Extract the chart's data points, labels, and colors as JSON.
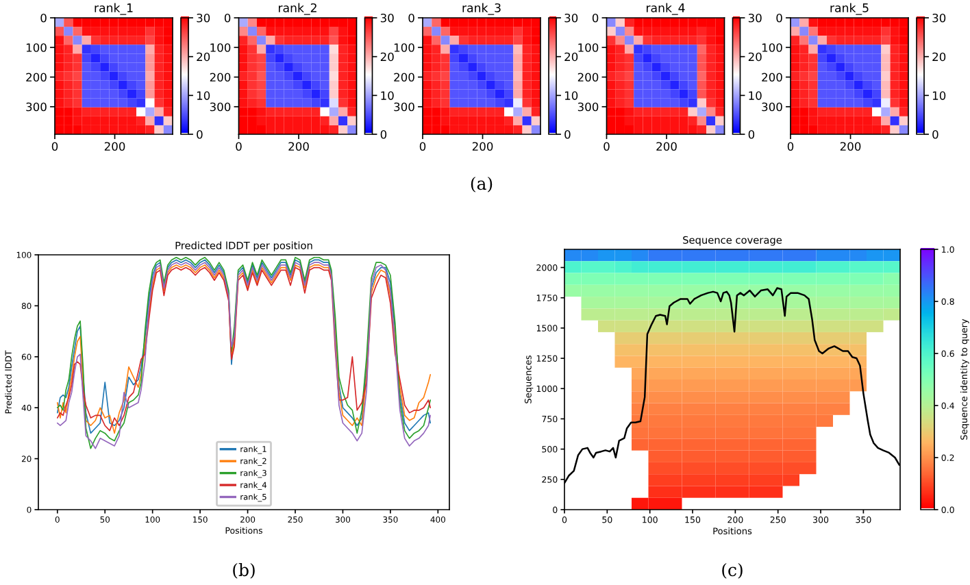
{
  "chart_data": [
    {
      "type": "heatmap",
      "title": "rank_1",
      "xlim": [
        0,
        393
      ],
      "ylim": [
        393,
        0
      ],
      "xticks": [
        0,
        200
      ],
      "yticks": [
        0,
        100,
        200,
        300
      ],
      "clim": [
        0,
        30
      ],
      "cticks": [
        0,
        10,
        20,
        30
      ],
      "cells": [
        [
          10,
          25,
          30,
          30,
          30,
          30,
          30,
          30,
          30,
          30,
          30,
          30,
          30
        ],
        [
          25,
          8,
          24,
          29,
          29,
          29,
          29,
          29,
          29,
          29,
          27,
          29,
          30
        ],
        [
          29,
          24,
          8,
          20,
          27,
          28,
          28,
          28,
          28,
          28,
          26,
          29,
          30
        ],
        [
          29,
          28,
          20,
          3,
          4,
          5,
          5,
          5,
          5,
          5,
          20,
          28,
          29
        ],
        [
          29,
          28,
          27,
          4,
          2,
          4,
          5,
          5,
          5,
          5,
          21,
          28,
          29
        ],
        [
          29,
          28,
          27,
          5,
          4,
          2,
          4,
          5,
          5,
          5,
          21,
          28,
          29
        ],
        [
          28,
          27,
          26,
          5,
          5,
          4,
          2,
          4,
          5,
          5,
          20,
          28,
          29
        ],
        [
          29,
          28,
          27,
          5,
          5,
          5,
          4,
          2,
          4,
          5,
          21,
          28,
          29
        ],
        [
          29,
          28,
          27,
          5,
          5,
          5,
          5,
          4,
          2,
          4,
          21,
          28,
          29
        ],
        [
          29,
          28,
          27,
          5,
          5,
          5,
          5,
          5,
          4,
          3,
          15,
          27,
          29
        ],
        [
          30,
          30,
          29,
          28,
          28,
          28,
          28,
          28,
          28,
          15,
          10,
          20,
          28
        ],
        [
          30,
          30,
          29,
          29,
          29,
          29,
          29,
          29,
          29,
          28,
          20,
          3,
          18
        ],
        [
          30,
          30,
          30,
          29,
          29,
          29,
          29,
          29,
          29,
          29,
          28,
          18,
          8
        ]
      ]
    },
    {
      "type": "heatmap",
      "title": "rank_2",
      "xlim": [
        0,
        393
      ],
      "ylim": [
        393,
        0
      ],
      "xticks": [
        0,
        200
      ],
      "yticks": [
        0,
        100,
        200,
        300
      ],
      "clim": [
        0,
        30
      ],
      "cticks": [
        0,
        10,
        20,
        30
      ],
      "cells": [
        [
          10,
          22,
          30,
          30,
          30,
          30,
          30,
          30,
          30,
          30,
          30,
          30,
          30
        ],
        [
          22,
          8,
          24,
          29,
          29,
          29,
          29,
          29,
          29,
          29,
          26,
          29,
          30
        ],
        [
          28,
          24,
          8,
          20,
          27,
          28,
          28,
          28,
          28,
          28,
          25,
          29,
          30
        ],
        [
          29,
          27,
          20,
          3,
          4,
          5,
          5,
          5,
          5,
          5,
          17,
          28,
          29
        ],
        [
          29,
          27,
          26,
          4,
          2,
          4,
          5,
          5,
          5,
          5,
          18,
          28,
          29
        ],
        [
          29,
          27,
          26,
          5,
          4,
          2,
          4,
          5,
          5,
          5,
          18,
          28,
          29
        ],
        [
          28,
          27,
          25,
          5,
          5,
          4,
          2,
          4,
          5,
          5,
          17,
          28,
          29
        ],
        [
          29,
          27,
          26,
          5,
          5,
          5,
          4,
          2,
          4,
          5,
          18,
          28,
          29
        ],
        [
          29,
          27,
          26,
          5,
          5,
          5,
          5,
          4,
          2,
          4,
          18,
          28,
          29
        ],
        [
          29,
          28,
          27,
          5,
          5,
          5,
          5,
          5,
          4,
          3,
          13,
          27,
          29
        ],
        [
          30,
          30,
          29,
          28,
          28,
          28,
          28,
          28,
          28,
          15,
          10,
          20,
          28
        ],
        [
          30,
          30,
          29,
          29,
          29,
          29,
          29,
          29,
          29,
          28,
          20,
          3,
          18
        ],
        [
          30,
          30,
          30,
          29,
          29,
          29,
          29,
          29,
          29,
          29,
          28,
          18,
          8
        ]
      ]
    },
    {
      "type": "heatmap",
      "title": "rank_3",
      "xlim": [
        0,
        393
      ],
      "ylim": [
        393,
        0
      ],
      "xticks": [
        0,
        200
      ],
      "yticks": [
        0,
        100,
        200,
        300
      ],
      "clim": [
        0,
        30
      ],
      "cticks": [
        0,
        10,
        20,
        30
      ],
      "annotations": [
        "(a)"
      ],
      "cells": [
        [
          10,
          24,
          30,
          30,
          30,
          30,
          30,
          30,
          30,
          30,
          30,
          30,
          30
        ],
        [
          24,
          8,
          24,
          29,
          29,
          29,
          29,
          29,
          29,
          29,
          27,
          29,
          30
        ],
        [
          29,
          24,
          8,
          20,
          27,
          28,
          28,
          28,
          28,
          28,
          26,
          29,
          30
        ],
        [
          29,
          28,
          20,
          3,
          4,
          5,
          5,
          5,
          5,
          5,
          19,
          28,
          29
        ],
        [
          29,
          28,
          27,
          4,
          2,
          4,
          5,
          5,
          5,
          5,
          20,
          28,
          29
        ],
        [
          29,
          28,
          27,
          5,
          4,
          2,
          4,
          5,
          5,
          5,
          20,
          28,
          29
        ],
        [
          28,
          27,
          26,
          5,
          5,
          4,
          2,
          4,
          5,
          5,
          19,
          28,
          29
        ],
        [
          29,
          28,
          27,
          5,
          5,
          5,
          4,
          2,
          4,
          5,
          20,
          28,
          29
        ],
        [
          29,
          28,
          27,
          5,
          5,
          5,
          5,
          4,
          2,
          4,
          20,
          28,
          29
        ],
        [
          29,
          28,
          27,
          5,
          5,
          5,
          5,
          5,
          4,
          3,
          14,
          27,
          29
        ],
        [
          30,
          30,
          29,
          28,
          28,
          28,
          28,
          28,
          28,
          15,
          10,
          20,
          28
        ],
        [
          30,
          30,
          29,
          29,
          29,
          29,
          29,
          29,
          29,
          28,
          20,
          3,
          18
        ],
        [
          30,
          30,
          30,
          29,
          29,
          29,
          29,
          29,
          29,
          29,
          28,
          18,
          8
        ]
      ]
    },
    {
      "type": "heatmap",
      "title": "rank_4",
      "xlim": [
        0,
        393
      ],
      "ylim": [
        393,
        0
      ],
      "xticks": [
        0,
        200
      ],
      "yticks": [
        0,
        100,
        200,
        300
      ],
      "clim": [
        0,
        30
      ],
      "cticks": [
        0,
        10,
        20,
        30
      ],
      "cells": [
        [
          8,
          18,
          28,
          30,
          30,
          30,
          30,
          30,
          30,
          30,
          30,
          30,
          30
        ],
        [
          18,
          8,
          22,
          29,
          29,
          29,
          29,
          29,
          29,
          29,
          28,
          29,
          30
        ],
        [
          27,
          22,
          8,
          20,
          27,
          28,
          28,
          28,
          28,
          28,
          27,
          29,
          30
        ],
        [
          29,
          28,
          20,
          3,
          4,
          5,
          5,
          5,
          5,
          5,
          24,
          28,
          29
        ],
        [
          29,
          28,
          27,
          4,
          2,
          4,
          5,
          5,
          5,
          5,
          25,
          28,
          29
        ],
        [
          29,
          28,
          27,
          5,
          4,
          2,
          4,
          5,
          5,
          5,
          25,
          28,
          29
        ],
        [
          28,
          27,
          26,
          5,
          5,
          4,
          2,
          4,
          5,
          5,
          24,
          28,
          29
        ],
        [
          29,
          28,
          27,
          5,
          5,
          5,
          4,
          2,
          4,
          5,
          25,
          28,
          29
        ],
        [
          29,
          28,
          27,
          5,
          5,
          5,
          5,
          4,
          2,
          4,
          25,
          28,
          29
        ],
        [
          29,
          28,
          27,
          5,
          5,
          5,
          5,
          5,
          4,
          3,
          18,
          27,
          29
        ],
        [
          30,
          30,
          29,
          28,
          28,
          28,
          28,
          28,
          28,
          18,
          10,
          22,
          28
        ],
        [
          30,
          30,
          29,
          29,
          29,
          29,
          29,
          29,
          29,
          28,
          22,
          3,
          18
        ],
        [
          30,
          30,
          30,
          29,
          29,
          29,
          29,
          29,
          29,
          29,
          28,
          18,
          8
        ]
      ]
    },
    {
      "type": "heatmap",
      "title": "rank_5",
      "xlim": [
        0,
        393
      ],
      "ylim": [
        393,
        0
      ],
      "xticks": [
        0,
        200
      ],
      "yticks": [
        0,
        100,
        200,
        300
      ],
      "clim": [
        0,
        30
      ],
      "cticks": [
        0,
        10,
        20,
        30
      ],
      "cells": [
        [
          9,
          20,
          29,
          30,
          30,
          30,
          30,
          30,
          30,
          30,
          30,
          30,
          30
        ],
        [
          20,
          8,
          23,
          29,
          29,
          29,
          29,
          29,
          29,
          29,
          27,
          29,
          30
        ],
        [
          28,
          23,
          8,
          20,
          27,
          28,
          28,
          28,
          28,
          28,
          26,
          29,
          30
        ],
        [
          29,
          28,
          20,
          3,
          4,
          5,
          5,
          5,
          5,
          5,
          18,
          28,
          29
        ],
        [
          29,
          28,
          27,
          4,
          2,
          4,
          5,
          5,
          5,
          5,
          19,
          28,
          29
        ],
        [
          29,
          28,
          27,
          5,
          4,
          2,
          4,
          5,
          5,
          5,
          19,
          28,
          29
        ],
        [
          28,
          27,
          26,
          5,
          5,
          4,
          2,
          4,
          5,
          5,
          18,
          28,
          29
        ],
        [
          29,
          28,
          27,
          5,
          5,
          5,
          4,
          2,
          4,
          5,
          19,
          28,
          29
        ],
        [
          29,
          28,
          27,
          5,
          5,
          5,
          5,
          4,
          2,
          4,
          19,
          28,
          29
        ],
        [
          29,
          28,
          27,
          5,
          5,
          5,
          5,
          5,
          4,
          3,
          14,
          27,
          29
        ],
        [
          30,
          30,
          29,
          28,
          28,
          28,
          28,
          28,
          28,
          15,
          10,
          20,
          28
        ],
        [
          30,
          30,
          29,
          29,
          29,
          29,
          29,
          29,
          29,
          28,
          20,
          3,
          18
        ],
        [
          30,
          30,
          30,
          29,
          29,
          29,
          29,
          29,
          29,
          29,
          28,
          18,
          8
        ]
      ]
    },
    {
      "type": "line",
      "title": "Predicted lDDT per position",
      "xlabel": "Positions",
      "ylabel": "Predicted lDDT",
      "xlim": [
        -20,
        412
      ],
      "ylim": [
        0,
        100
      ],
      "xticks": [
        0,
        50,
        100,
        150,
        200,
        250,
        300,
        350,
        400
      ],
      "yticks": [
        0,
        20,
        40,
        60,
        80,
        100
      ],
      "legend": "bottom",
      "annotations": [
        "(b)"
      ],
      "x": [
        0,
        3,
        6,
        9,
        12,
        15,
        18,
        21,
        24,
        27,
        30,
        35,
        40,
        45,
        50,
        55,
        60,
        65,
        70,
        75,
        80,
        85,
        88,
        92,
        96,
        100,
        104,
        108,
        112,
        116,
        120,
        125,
        130,
        135,
        140,
        145,
        150,
        155,
        160,
        165,
        170,
        175,
        180,
        183,
        186,
        190,
        195,
        200,
        205,
        210,
        215,
        220,
        225,
        230,
        235,
        240,
        245,
        250,
        255,
        260,
        265,
        270,
        275,
        280,
        285,
        288,
        292,
        296,
        300,
        305,
        310,
        315,
        320,
        325,
        330,
        335,
        340,
        345,
        350,
        355,
        360,
        365,
        370,
        375,
        380,
        385,
        390,
        392
      ],
      "series": [
        {
          "name": "rank_1",
          "color": "#1f77b4",
          "values": [
            38,
            44,
            45,
            44,
            48,
            56,
            63,
            70,
            72,
            53,
            38,
            30,
            32,
            34,
            50,
            34,
            33,
            35,
            40,
            52,
            49,
            51,
            56,
            67,
            82,
            92,
            96,
            97,
            88,
            95,
            97,
            98,
            97,
            98,
            97,
            95,
            97,
            98,
            96,
            93,
            96,
            93,
            85,
            57,
            70,
            93,
            95,
            89,
            96,
            91,
            97,
            94,
            91,
            94,
            97,
            97,
            92,
            98,
            97,
            89,
            97,
            98,
            98,
            97,
            97,
            93,
            72,
            49,
            40,
            38,
            36,
            33,
            36,
            56,
            87,
            93,
            95,
            95,
            89,
            70,
            45,
            34,
            31,
            33,
            35,
            37,
            38,
            34
          ]
        },
        {
          "name": "rank_2",
          "color": "#ff7f0e",
          "values": [
            42,
            36,
            42,
            38,
            46,
            52,
            60,
            66,
            68,
            50,
            35,
            33,
            35,
            40,
            36,
            37,
            30,
            38,
            43,
            56,
            52,
            48,
            53,
            64,
            76,
            88,
            94,
            95,
            86,
            93,
            95,
            96,
            95,
            96,
            95,
            93,
            95,
            96,
            94,
            91,
            94,
            91,
            83,
            60,
            66,
            91,
            93,
            87,
            94,
            89,
            95,
            92,
            89,
            92,
            95,
            95,
            90,
            96,
            95,
            87,
            95,
            96,
            96,
            95,
            95,
            91,
            69,
            46,
            37,
            35,
            33,
            36,
            33,
            53,
            85,
            91,
            94,
            93,
            84,
            67,
            48,
            37,
            35,
            36,
            42,
            44,
            50,
            53
          ]
        },
        {
          "name": "rank_3",
          "color": "#2ca02c",
          "values": [
            40,
            41,
            39,
            47,
            51,
            60,
            67,
            72,
            74,
            56,
            32,
            24,
            28,
            31,
            30,
            28,
            27,
            31,
            34,
            42,
            43,
            45,
            50,
            70,
            85,
            94,
            97,
            98,
            89,
            96,
            98,
            99,
            98,
            99,
            98,
            96,
            98,
            99,
            97,
            94,
            97,
            94,
            86,
            62,
            72,
            94,
            96,
            90,
            97,
            92,
            98,
            95,
            92,
            95,
            98,
            98,
            93,
            99,
            98,
            90,
            98,
            99,
            99,
            98,
            98,
            94,
            76,
            52,
            46,
            41,
            39,
            30,
            39,
            60,
            91,
            97,
            97,
            96,
            92,
            73,
            42,
            31,
            28,
            30,
            31,
            33,
            40,
            43
          ]
        },
        {
          "name": "rank_4",
          "color": "#d62728",
          "values": [
            36,
            38,
            37,
            41,
            44,
            49,
            57,
            58,
            57,
            47,
            41,
            36,
            37,
            37,
            33,
            31,
            36,
            33,
            37,
            44,
            46,
            54,
            59,
            61,
            74,
            86,
            93,
            94,
            84,
            92,
            94,
            95,
            94,
            95,
            94,
            92,
            94,
            95,
            93,
            90,
            93,
            90,
            82,
            59,
            64,
            90,
            92,
            86,
            93,
            88,
            94,
            91,
            88,
            91,
            94,
            94,
            88,
            95,
            94,
            85,
            94,
            95,
            95,
            94,
            94,
            90,
            63,
            43,
            43,
            44,
            60,
            39,
            42,
            50,
            83,
            88,
            92,
            91,
            81,
            61,
            51,
            41,
            38,
            39,
            39,
            40,
            43,
            40
          ]
        },
        {
          "name": "rank_5",
          "color": "#9467bd",
          "values": [
            34,
            33,
            34,
            35,
            42,
            46,
            54,
            60,
            61,
            44,
            29,
            27,
            24,
            28,
            27,
            26,
            25,
            29,
            46,
            40,
            41,
            42,
            47,
            58,
            79,
            90,
            95,
            96,
            87,
            94,
            96,
            97,
            96,
            97,
            96,
            94,
            96,
            97,
            95,
            92,
            95,
            92,
            84,
            64,
            68,
            92,
            94,
            88,
            95,
            90,
            96,
            93,
            90,
            93,
            96,
            96,
            91,
            97,
            96,
            88,
            96,
            97,
            97,
            96,
            96,
            92,
            66,
            41,
            34,
            32,
            30,
            27,
            30,
            47,
            89,
            95,
            96,
            94,
            86,
            64,
            39,
            28,
            25,
            27,
            28,
            30,
            33,
            37
          ]
        }
      ]
    },
    {
      "type": "heatmap",
      "title": "Sequence coverage",
      "xlabel": "Positions",
      "ylabel": "Sequences",
      "clabel": "Sequence identity to query",
      "xlim": [
        0,
        393
      ],
      "ylim": [
        0,
        2150
      ],
      "xticks": [
        0,
        50,
        100,
        150,
        200,
        250,
        300,
        350
      ],
      "yticks": [
        0,
        250,
        500,
        750,
        1000,
        1250,
        1500,
        1750,
        2000
      ],
      "clim": [
        0,
        1
      ],
      "cticks": [
        {
          "value": 0,
          "label": "0.0"
        },
        0.2,
        0.4,
        0.6,
        0.8,
        {
          "value": 1,
          "label": "1.0"
        }
      ],
      "annotations": [
        "(c)"
      ],
      "cells": [
        [
          0.82,
          0.82,
          0.8,
          0.8,
          0.82,
          0.84,
          0.84,
          0.84,
          0.84,
          0.84,
          0.84,
          0.84,
          0.84,
          0.84,
          0.84,
          0.82,
          0.82,
          0.82,
          0.8,
          0.8
        ],
        [
          0.6,
          0.58,
          0.58,
          0.6,
          0.62,
          0.62,
          0.62,
          0.62,
          0.62,
          0.62,
          0.62,
          0.62,
          0.62,
          0.62,
          0.62,
          0.6,
          0.6,
          0.58,
          0.58,
          0.58
        ],
        [
          0.5,
          0.5,
          0.5,
          0.5,
          0.5,
          0.5,
          0.5,
          0.5,
          0.5,
          0.5,
          0.5,
          0.5,
          0.5,
          0.5,
          0.5,
          0.5,
          0.5,
          0.5,
          0.5,
          0.48
        ],
        [
          0.45,
          0.45,
          0.45,
          0.45,
          0.45,
          0.45,
          0.45,
          0.45,
          0.45,
          0.45,
          0.45,
          0.45,
          0.45,
          0.45,
          0.45,
          0.45,
          0.45,
          0.45,
          0.45,
          0.45
        ],
        [
          null,
          0.42,
          0.42,
          0.42,
          0.42,
          0.42,
          0.42,
          0.42,
          0.42,
          0.42,
          0.42,
          0.42,
          0.42,
          0.42,
          0.42,
          0.42,
          0.42,
          0.42,
          0.42,
          0.42
        ],
        [
          null,
          0.38,
          0.38,
          0.38,
          0.38,
          0.38,
          0.38,
          0.38,
          0.38,
          0.38,
          0.38,
          0.38,
          0.38,
          0.38,
          0.38,
          0.38,
          0.38,
          0.38,
          0.38,
          0.37
        ],
        [
          null,
          null,
          0.34,
          0.34,
          0.34,
          0.34,
          0.34,
          0.34,
          0.34,
          0.34,
          0.34,
          0.34,
          0.34,
          0.34,
          0.34,
          0.34,
          0.34,
          0.34,
          0.34,
          null
        ],
        [
          null,
          null,
          null,
          0.3,
          0.3,
          0.3,
          0.3,
          0.3,
          0.3,
          0.3,
          0.3,
          0.3,
          0.3,
          0.3,
          0.3,
          0.3,
          0.3,
          0.3,
          null,
          null
        ],
        [
          null,
          null,
          null,
          0.27,
          0.27,
          0.27,
          0.27,
          0.27,
          0.27,
          0.27,
          0.27,
          0.27,
          0.27,
          0.27,
          0.27,
          0.27,
          0.27,
          0.27,
          null,
          null
        ],
        [
          null,
          null,
          null,
          0.25,
          0.25,
          0.25,
          0.25,
          0.25,
          0.25,
          0.25,
          0.25,
          0.25,
          0.25,
          0.25,
          0.25,
          0.25,
          0.25,
          0.25,
          null,
          null
        ],
        [
          null,
          null,
          null,
          null,
          0.23,
          0.23,
          0.23,
          0.23,
          0.23,
          0.23,
          0.23,
          0.23,
          0.23,
          0.23,
          0.23,
          0.23,
          0.23,
          0.23,
          null,
          null
        ],
        [
          null,
          null,
          null,
          null,
          0.21,
          0.21,
          0.21,
          0.21,
          0.21,
          0.21,
          0.21,
          0.21,
          0.21,
          0.21,
          0.21,
          0.21,
          0.21,
          0.21,
          null,
          null
        ],
        [
          null,
          null,
          null,
          null,
          0.19,
          0.19,
          0.19,
          0.19,
          0.19,
          0.19,
          0.19,
          0.19,
          0.19,
          0.19,
          0.19,
          0.19,
          0.19,
          null,
          null,
          null
        ],
        [
          null,
          null,
          null,
          null,
          0.17,
          0.17,
          0.17,
          0.17,
          0.17,
          0.17,
          0.17,
          0.17,
          0.17,
          0.17,
          0.17,
          0.17,
          0.17,
          null,
          null,
          null
        ],
        [
          null,
          null,
          null,
          null,
          0.16,
          0.16,
          0.16,
          0.16,
          0.16,
          0.16,
          0.16,
          0.16,
          0.16,
          0.16,
          0.16,
          0.16,
          null,
          null,
          null,
          null
        ],
        [
          null,
          null,
          null,
          null,
          0.15,
          0.15,
          0.15,
          0.15,
          0.15,
          0.15,
          0.15,
          0.15,
          0.15,
          0.15,
          0.15,
          null,
          null,
          null,
          null,
          null
        ],
        [
          null,
          null,
          null,
          null,
          0.13,
          0.13,
          0.13,
          0.13,
          0.13,
          0.13,
          0.13,
          0.13,
          0.13,
          0.13,
          0.13,
          null,
          null,
          null,
          null,
          null
        ],
        [
          null,
          null,
          null,
          null,
          null,
          0.12,
          0.12,
          0.12,
          0.12,
          0.12,
          0.12,
          0.12,
          0.12,
          0.12,
          0.12,
          null,
          null,
          null,
          null,
          null
        ],
        [
          null,
          null,
          null,
          null,
          null,
          0.1,
          0.1,
          0.1,
          0.1,
          0.1,
          0.1,
          0.1,
          0.1,
          0.1,
          0.1,
          null,
          null,
          null,
          null,
          null
        ],
        [
          null,
          null,
          null,
          null,
          null,
          0.08,
          0.08,
          0.08,
          0.08,
          0.08,
          0.08,
          0.08,
          0.08,
          0.08,
          null,
          null,
          null,
          null,
          null,
          null
        ],
        [
          null,
          null,
          null,
          null,
          null,
          0.06,
          0.06,
          0.06,
          0.06,
          0.06,
          0.06,
          0.06,
          0.06,
          null,
          null,
          null,
          null,
          null,
          null,
          null
        ],
        [
          null,
          null,
          null,
          null,
          0.03,
          0.03,
          0.03,
          null,
          null,
          null,
          null,
          null,
          null,
          null,
          null,
          null,
          null,
          null,
          null,
          null
        ]
      ],
      "series": [
        {
          "type": "line",
          "color": "#000000",
          "x": [
            0,
            5,
            11,
            16,
            21,
            27,
            30,
            34,
            37,
            43,
            48,
            53,
            57,
            60,
            64,
            70,
            73,
            78,
            83,
            89,
            94,
            97,
            102,
            107,
            112,
            118,
            120,
            123,
            128,
            136,
            144,
            147,
            152,
            160,
            168,
            174,
            179,
            183,
            186,
            190,
            193,
            195,
            199,
            202,
            206,
            210,
            217,
            223,
            230,
            238,
            244,
            249,
            254,
            258,
            260,
            265,
            273,
            281,
            286,
            290,
            293,
            298,
            302,
            309,
            316,
            321,
            326,
            332,
            337,
            342,
            346,
            350,
            355,
            358,
            362,
            367,
            373,
            380,
            387,
            392
          ],
          "values": [
            220,
            280,
            320,
            450,
            500,
            510,
            470,
            430,
            470,
            480,
            490,
            480,
            510,
            430,
            570,
            590,
            670,
            720,
            720,
            730,
            930,
            1450,
            1530,
            1600,
            1610,
            1600,
            1530,
            1680,
            1710,
            1740,
            1740,
            1700,
            1740,
            1770,
            1790,
            1800,
            1790,
            1720,
            1790,
            1800,
            1770,
            1710,
            1470,
            1770,
            1790,
            1770,
            1810,
            1760,
            1810,
            1820,
            1770,
            1830,
            1820,
            1600,
            1760,
            1790,
            1790,
            1770,
            1740,
            1570,
            1400,
            1310,
            1290,
            1330,
            1350,
            1330,
            1310,
            1310,
            1260,
            1250,
            1190,
            960,
            740,
            620,
            550,
            510,
            490,
            470,
            430,
            370
          ]
        }
      ]
    }
  ]
}
